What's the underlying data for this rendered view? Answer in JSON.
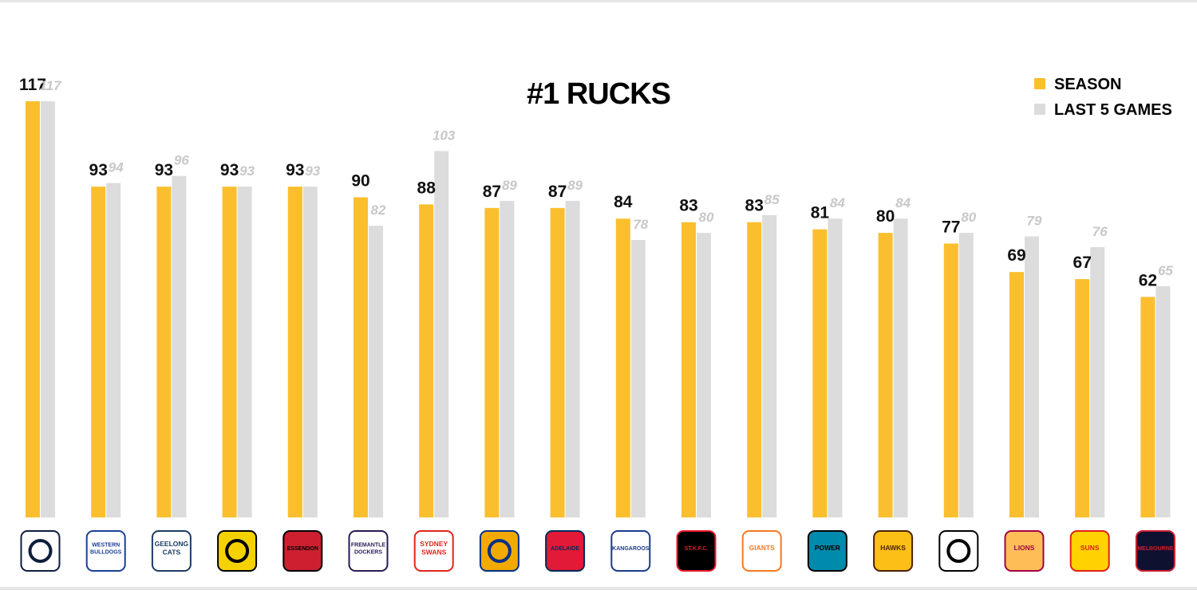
{
  "chart_data": {
    "type": "bar",
    "title": "#1 RUCKS",
    "xlabel": "",
    "ylabel": "",
    "ylim": [
      0,
      117
    ],
    "grid": false,
    "legend": "top-right",
    "colors": {
      "season": "#FBBF2E",
      "last5": "#DCDCDC"
    },
    "categories": [
      "Carlton",
      "Western Bulldogs",
      "Geelong Cats",
      "Richmond",
      "Essendon",
      "Fremantle Dockers",
      "Sydney Swans",
      "West Coast Eagles",
      "Adelaide Crows",
      "Kangaroos",
      "St Kilda",
      "GWS Giants",
      "Port Adelaide Power",
      "Hawks",
      "Collingwood",
      "Brisbane Lions",
      "Gold Coast Suns",
      "Melbourne"
    ],
    "series": [
      {
        "name": "SEASON",
        "values": [
          117,
          93,
          93,
          93,
          93,
          90,
          88,
          87,
          87,
          84,
          83,
          83,
          81,
          80,
          77,
          69,
          67,
          62
        ]
      },
      {
        "name": "LAST 5 GAMES",
        "values": [
          117,
          94,
          96,
          93,
          93,
          82,
          103,
          89,
          89,
          78,
          80,
          85,
          84,
          84,
          80,
          79,
          76,
          65
        ]
      }
    ]
  },
  "logos": [
    {
      "icon": "carlton-logo-icon",
      "text": "",
      "color": "#0e1e3c",
      "bg": "#ffffff"
    },
    {
      "icon": "western-bulldogs-logo-icon",
      "text": "WESTERN BULLDOGS",
      "color": "#1b3f97",
      "bg": "#ffffff"
    },
    {
      "icon": "geelong-logo-icon",
      "text": "GEELONG CATS",
      "color": "#1c3c63",
      "bg": "#ffffff"
    },
    {
      "icon": "richmond-logo-icon",
      "text": "",
      "color": "#000000",
      "bg": "#f5d100"
    },
    {
      "icon": "essendon-logo-icon",
      "text": "ESSENDON",
      "color": "#000000",
      "bg": "#cc2031"
    },
    {
      "icon": "fremantle-logo-icon",
      "text": "FREMANTLE DOCKERS",
      "color": "#2a1a54",
      "bg": "#ffffff"
    },
    {
      "icon": "sydney-logo-icon",
      "text": "SYDNEY SWANS",
      "color": "#e1251b",
      "bg": "#ffffff"
    },
    {
      "icon": "west-coast-logo-icon",
      "text": "",
      "color": "#003087",
      "bg": "#f2a900"
    },
    {
      "icon": "adelaide-logo-icon",
      "text": "ADELAIDE",
      "color": "#002b5c",
      "bg": "#e21937"
    },
    {
      "icon": "north-melbourne-logo-icon",
      "text": "KANGAROOS",
      "color": "#1a3b8a",
      "bg": "#ffffff"
    },
    {
      "icon": "st-kilda-logo-icon",
      "text": "ST.K.F.C.",
      "color": "#ed1b2f",
      "bg": "#000000"
    },
    {
      "icon": "gws-logo-icon",
      "text": "GIANTS",
      "color": "#f47920",
      "bg": "#ffffff"
    },
    {
      "icon": "port-adelaide-logo-icon",
      "text": "POWER",
      "color": "#000000",
      "bg": "#008aab"
    },
    {
      "icon": "hawthorn-logo-icon",
      "text": "HAWKS",
      "color": "#4d2004",
      "bg": "#fbbf15"
    },
    {
      "icon": "collingwood-logo-icon",
      "text": "",
      "color": "#000000",
      "bg": "#ffffff"
    },
    {
      "icon": "brisbane-logo-icon",
      "text": "LIONS",
      "color": "#a30046",
      "bg": "#fdbe57"
    },
    {
      "icon": "gold-coast-logo-icon",
      "text": "SUNS",
      "color": "#e02112",
      "bg": "#ffd200"
    },
    {
      "icon": "melbourne-logo-icon",
      "text": "MELBOURNE",
      "color": "#cc2031",
      "bg": "#0f1131"
    }
  ]
}
